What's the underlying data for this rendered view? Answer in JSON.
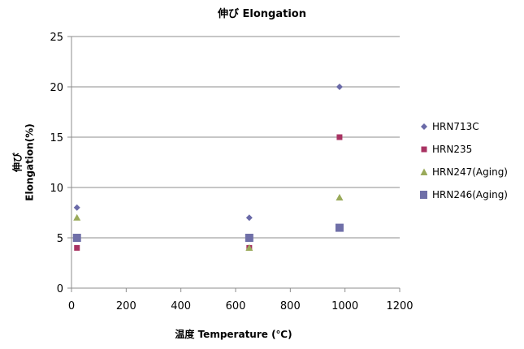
{
  "chart_data": {
    "type": "scatter",
    "title": "伸び Elongation",
    "xlabel": "温度 Temperature (℃)",
    "ylabel_line1": "伸び",
    "ylabel_line2": "Elongation(%)",
    "xlim": [
      0,
      1200
    ],
    "ylim": [
      0,
      25
    ],
    "xticks": [
      0,
      200,
      400,
      600,
      800,
      1000,
      1200
    ],
    "yticks": [
      0,
      5,
      10,
      15,
      20,
      25
    ],
    "grid": "horizontal",
    "legend_position": "right",
    "series": [
      {
        "name": "HRN713C",
        "marker": "diamond",
        "color": "#6a6aa8",
        "points": [
          {
            "x": 20,
            "y": 8
          },
          {
            "x": 650,
            "y": 7
          },
          {
            "x": 980,
            "y": 20
          }
        ]
      },
      {
        "name": "HRN235",
        "marker": "square-small",
        "color": "#a83262",
        "points": [
          {
            "x": 20,
            "y": 4
          },
          {
            "x": 650,
            "y": 4
          },
          {
            "x": 980,
            "y": 15
          }
        ]
      },
      {
        "name": "HRN247(Aging)",
        "marker": "triangle",
        "color": "#9aaa5a",
        "points": [
          {
            "x": 20,
            "y": 7
          },
          {
            "x": 650,
            "y": 4
          },
          {
            "x": 980,
            "y": 9
          }
        ]
      },
      {
        "name": "HRN246(Aging)",
        "marker": "square",
        "color": "#6f6fa8",
        "points": [
          {
            "x": 20,
            "y": 5
          },
          {
            "x": 650,
            "y": 5
          },
          {
            "x": 980,
            "y": 6
          }
        ]
      }
    ]
  }
}
